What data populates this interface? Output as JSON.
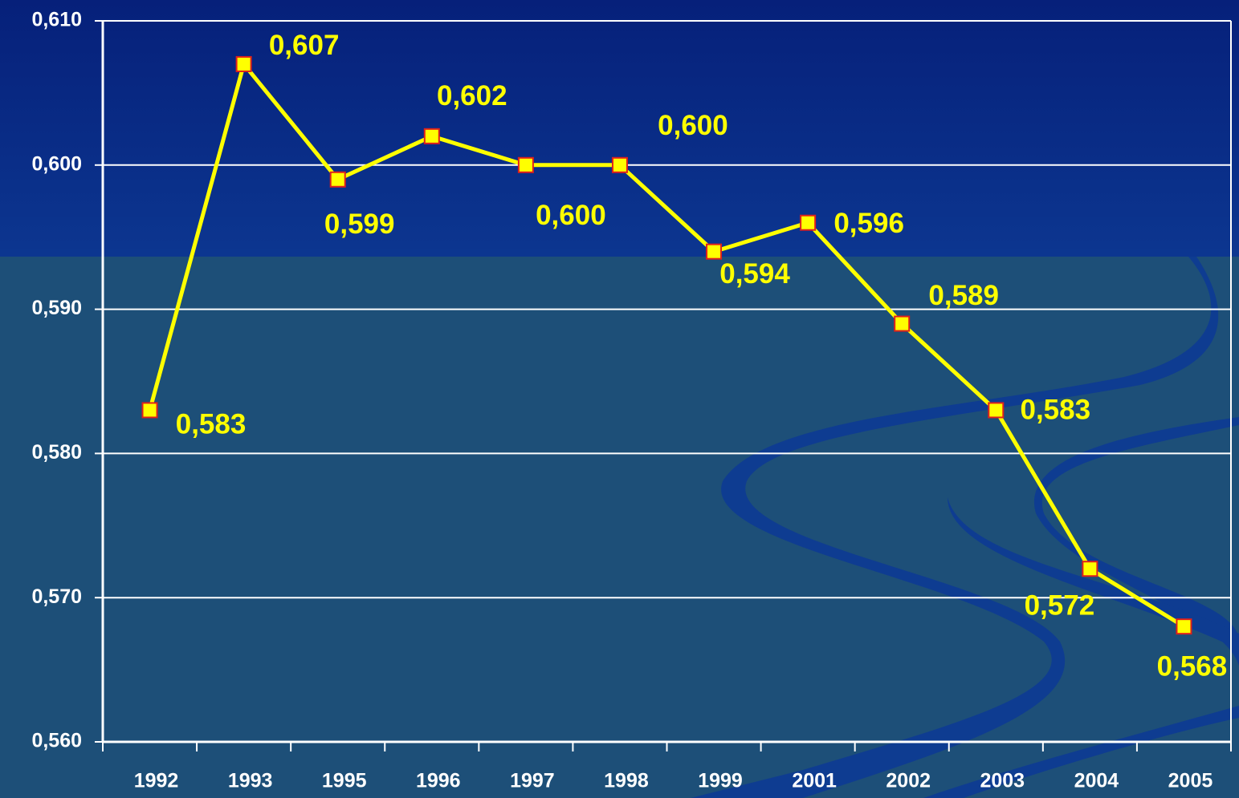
{
  "chart_data": {
    "type": "line",
    "categories": [
      "1992",
      "1993",
      "1995",
      "1996",
      "1997",
      "1998",
      "1999",
      "2001",
      "2002",
      "2003",
      "2004",
      "2005"
    ],
    "series": [
      {
        "color": "#ffff00",
        "values": [
          0.583,
          0.607,
          0.599,
          0.602,
          0.6,
          0.6,
          0.594,
          0.596,
          0.589,
          0.583,
          0.572,
          0.568
        ],
        "value_labels": [
          "0,583",
          "0,607",
          "0,599",
          "0,602",
          "0,600",
          "0,600",
          "0,594",
          "0,596",
          "0,589",
          "0,583",
          "0,572",
          "0,568"
        ]
      }
    ],
    "ylim": [
      0.56,
      0.61
    ],
    "yticks": [
      {
        "value": 0.56,
        "label": "0,560"
      },
      {
        "value": 0.57,
        "label": "0,570"
      },
      {
        "value": 0.58,
        "label": "0,580"
      },
      {
        "value": 0.59,
        "label": "0,590"
      },
      {
        "value": 0.6,
        "label": "0,600"
      },
      {
        "value": 0.61,
        "label": "0,610"
      }
    ],
    "grid": true
  }
}
